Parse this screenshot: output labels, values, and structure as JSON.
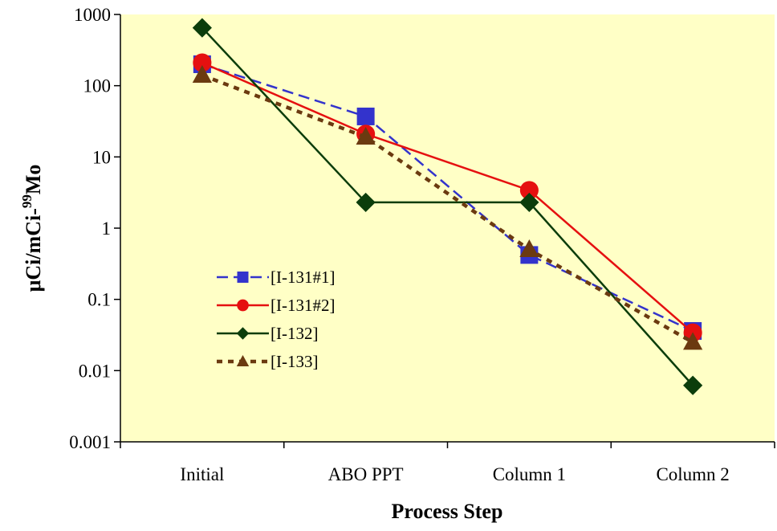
{
  "chart_data": {
    "type": "line",
    "title": "",
    "xlabel": "Process Step",
    "ylabel": {
      "prefix": "μCi/mCi-",
      "superscript": "99",
      "suffix": "Mo"
    },
    "categories": [
      "Initial",
      "ABO PPT",
      "Column 1",
      "Column 2"
    ],
    "y_scale": "log",
    "ylim": [
      0.001,
      1000
    ],
    "y_tick_labels": [
      "0.001",
      "0.01",
      "0.1",
      "1",
      "10",
      "100",
      "1000"
    ],
    "grid": false,
    "plot_background": "#FFFFC6",
    "legend_position": "left-inside",
    "series": [
      {
        "name": "[I-131#1]",
        "values": [
          200,
          37,
          0.42,
          0.036
        ],
        "color": "#3333CC",
        "dash": "dashed",
        "marker": "square"
      },
      {
        "name": "[I-131#2]",
        "values": [
          210,
          21,
          3.4,
          0.034
        ],
        "color": "#E51010",
        "dash": "solid",
        "marker": "circle"
      },
      {
        "name": "[I-132]",
        "values": [
          650,
          2.3,
          2.3,
          0.0062
        ],
        "color": "#0B3D0B",
        "dash": "solid",
        "marker": "diamond"
      },
      {
        "name": "[I-133]",
        "values": [
          140,
          19,
          0.5,
          0.025
        ],
        "color": "#6B3A10",
        "dash": "dotted",
        "marker": "triangle"
      }
    ]
  }
}
